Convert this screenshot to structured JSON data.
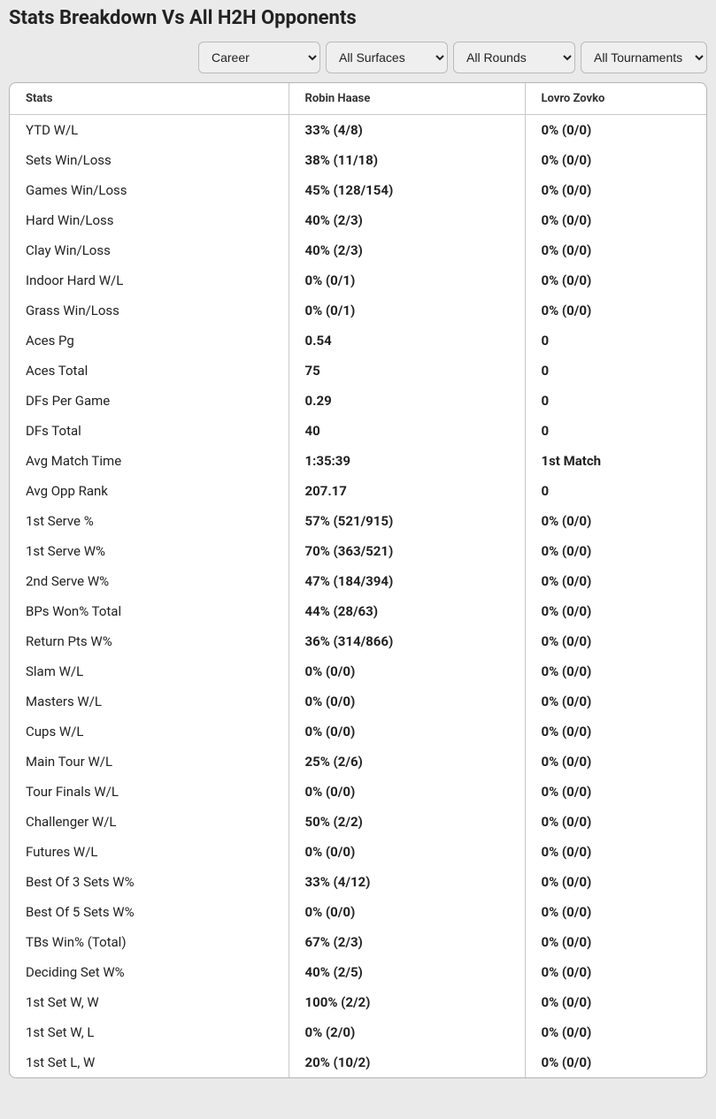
{
  "title": "Stats Breakdown Vs All H2H Opponents",
  "filters": {
    "period": {
      "selected": "Career",
      "options": [
        "Career"
      ]
    },
    "surface": {
      "selected": "All Surfaces",
      "options": [
        "All Surfaces"
      ]
    },
    "round": {
      "selected": "All Rounds",
      "options": [
        "All Rounds"
      ]
    },
    "tournament": {
      "selected": "All Tournaments",
      "options": [
        "All Tournaments"
      ]
    }
  },
  "table": {
    "headers": [
      "Stats",
      "Robin Haase",
      "Lovro Zovko"
    ],
    "rows": [
      {
        "label": "YTD W/L",
        "p1": "33% (4/8)",
        "p2": "0% (0/0)"
      },
      {
        "label": "Sets Win/Loss",
        "p1": "38% (11/18)",
        "p2": "0% (0/0)"
      },
      {
        "label": "Games Win/Loss",
        "p1": "45% (128/154)",
        "p2": "0% (0/0)"
      },
      {
        "label": "Hard Win/Loss",
        "p1": "40% (2/3)",
        "p2": "0% (0/0)"
      },
      {
        "label": "Clay Win/Loss",
        "p1": "40% (2/3)",
        "p2": "0% (0/0)"
      },
      {
        "label": "Indoor Hard W/L",
        "p1": "0% (0/1)",
        "p2": "0% (0/0)"
      },
      {
        "label": "Grass Win/Loss",
        "p1": "0% (0/1)",
        "p2": "0% (0/0)"
      },
      {
        "label": "Aces Pg",
        "p1": "0.54",
        "p2": "0"
      },
      {
        "label": "Aces Total",
        "p1": "75",
        "p2": "0"
      },
      {
        "label": "DFs Per Game",
        "p1": "0.29",
        "p2": "0"
      },
      {
        "label": "DFs Total",
        "p1": "40",
        "p2": "0"
      },
      {
        "label": "Avg Match Time",
        "p1": "1:35:39",
        "p2": "1st Match"
      },
      {
        "label": "Avg Opp Rank",
        "p1": "207.17",
        "p2": "0"
      },
      {
        "label": "1st Serve %",
        "p1": "57% (521/915)",
        "p2": "0% (0/0)"
      },
      {
        "label": "1st Serve W%",
        "p1": "70% (363/521)",
        "p2": "0% (0/0)"
      },
      {
        "label": "2nd Serve W%",
        "p1": "47% (184/394)",
        "p2": "0% (0/0)"
      },
      {
        "label": "BPs Won% Total",
        "p1": "44% (28/63)",
        "p2": "0% (0/0)"
      },
      {
        "label": "Return Pts W%",
        "p1": "36% (314/866)",
        "p2": "0% (0/0)"
      },
      {
        "label": "Slam W/L",
        "p1": "0% (0/0)",
        "p2": "0% (0/0)"
      },
      {
        "label": "Masters W/L",
        "p1": "0% (0/0)",
        "p2": "0% (0/0)"
      },
      {
        "label": "Cups W/L",
        "p1": "0% (0/0)",
        "p2": "0% (0/0)"
      },
      {
        "label": "Main Tour W/L",
        "p1": "25% (2/6)",
        "p2": "0% (0/0)"
      },
      {
        "label": "Tour Finals W/L",
        "p1": "0% (0/0)",
        "p2": "0% (0/0)"
      },
      {
        "label": "Challenger W/L",
        "p1": "50% (2/2)",
        "p2": "0% (0/0)"
      },
      {
        "label": "Futures W/L",
        "p1": "0% (0/0)",
        "p2": "0% (0/0)"
      },
      {
        "label": "Best Of 3 Sets W%",
        "p1": "33% (4/12)",
        "p2": "0% (0/0)"
      },
      {
        "label": "Best Of 5 Sets W%",
        "p1": "0% (0/0)",
        "p2": "0% (0/0)"
      },
      {
        "label": "TBs Win% (Total)",
        "p1": "67% (2/3)",
        "p2": "0% (0/0)"
      },
      {
        "label": "Deciding Set W%",
        "p1": "40% (2/5)",
        "p2": "0% (0/0)"
      },
      {
        "label": "1st Set W, W",
        "p1": "100% (2/2)",
        "p2": "0% (0/0)"
      },
      {
        "label": "1st Set W, L",
        "p1": "0% (2/0)",
        "p2": "0% (0/0)"
      },
      {
        "label": "1st Set L, W",
        "p1": "20% (10/2)",
        "p2": "0% (0/0)"
      }
    ]
  },
  "styles": {
    "page_bg": "#eaeaea",
    "table_bg": "#ffffff",
    "border_color": "#c9c9c9",
    "text_color": "#222222",
    "header_fontsize": 13,
    "cell_fontsize": 15,
    "title_fontsize": 22
  }
}
